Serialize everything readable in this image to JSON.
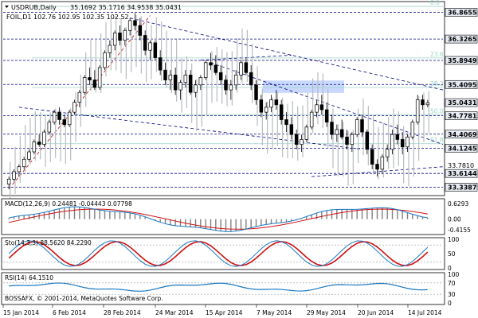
{
  "window": {
    "title": "USDRUB,Daily",
    "ohlc_header": "35.1692 35.1716 34.9538 35.0431",
    "overlay_symbol_line": "FOIL,D1 102.76 102.95 102.35 102.52",
    "copyright": "BOSSAFX, © 2001-2014, MetaQuotes Software Corp."
  },
  "colors": {
    "bull_candle": "#000000",
    "bear_candle": "#000000",
    "overlay_bars": "#b8bcc0",
    "trendline": "#000080",
    "fib": "#9bd4c9",
    "level_line": "#000080",
    "zone": "#c8d8ff",
    "macd_hist": "#808080",
    "macd_signal": "#d01010",
    "macd_main": "#1a78c2",
    "stoch_main": "#1a78c2",
    "stoch_signal": "#d01010",
    "rsi": "#1a78c2"
  },
  "chart_data": [
    {
      "type": "candlestick",
      "name": "USDRUB,Daily",
      "ylim": [
        33.2,
        37.05
      ],
      "y_ticks": [
        "36.8655",
        "36.3265",
        "35.8949",
        "35.4095",
        "35.0431",
        "34.7781",
        "34.4069",
        "34.1245",
        "33.7810",
        "33.6144",
        "33.3387"
      ],
      "highlighted_ticks": [
        "36.8655",
        "36.3265",
        "35.8949",
        "35.4095",
        "35.0431",
        "34.7781",
        "34.4069",
        "34.1245",
        "33.6144",
        "33.3387"
      ],
      "x_tick_labels": [
        "15 Jan 2014",
        "6 Feb 2014",
        "28 Feb 2014",
        "24 Mar 2014",
        "15 Apr 2014",
        "7 May 2014",
        "29 May 2014",
        "20 Jun 2014",
        "14 Jul 2014"
      ],
      "fib_levels": [
        {
          "label": "0.0",
          "value": 36.985
        },
        {
          "label": "23.6",
          "value": 35.945
        },
        {
          "label": "38.2",
          "value": 35.35
        },
        {
          "label": "50.0",
          "value": 34.8
        },
        {
          "label": "61.8",
          "value": 34.215
        }
      ],
      "horizontal_levels": [
        36.8655,
        36.3265,
        35.8949,
        35.4095,
        34.7781,
        34.4069,
        34.1245,
        33.6144,
        33.3387
      ],
      "zone": {
        "low": 35.24,
        "high": 35.49
      },
      "last_price": 35.0431,
      "candles": [
        [
          33.4,
          33.55,
          33.3,
          33.5
        ],
        [
          33.5,
          33.7,
          33.45,
          33.65
        ],
        [
          33.65,
          33.8,
          33.55,
          33.75
        ],
        [
          33.75,
          33.95,
          33.7,
          33.9
        ],
        [
          33.9,
          34.1,
          33.85,
          34.05
        ],
        [
          34.05,
          34.3,
          34.0,
          34.25
        ],
        [
          34.25,
          34.4,
          34.15,
          34.2
        ],
        [
          34.2,
          34.5,
          34.15,
          34.45
        ],
        [
          34.45,
          34.7,
          34.4,
          34.65
        ],
        [
          34.65,
          34.9,
          34.6,
          34.85
        ],
        [
          34.85,
          34.95,
          34.6,
          34.7
        ],
        [
          34.7,
          34.8,
          34.55,
          34.6
        ],
        [
          34.6,
          34.9,
          34.55,
          34.85
        ],
        [
          34.85,
          35.1,
          34.8,
          35.05
        ],
        [
          35.05,
          35.3,
          34.95,
          35.25
        ],
        [
          35.25,
          35.6,
          35.2,
          35.55
        ],
        [
          35.55,
          35.75,
          35.4,
          35.5
        ],
        [
          35.5,
          35.7,
          35.3,
          35.35
        ],
        [
          35.35,
          35.8,
          35.3,
          35.75
        ],
        [
          35.75,
          36.1,
          35.7,
          36.05
        ],
        [
          36.05,
          36.3,
          35.95,
          36.2
        ],
        [
          36.2,
          36.5,
          36.1,
          36.45
        ],
        [
          36.45,
          36.6,
          36.2,
          36.3
        ],
        [
          36.3,
          36.55,
          36.2,
          36.5
        ],
        [
          36.5,
          36.75,
          36.4,
          36.7
        ],
        [
          36.7,
          36.85,
          36.5,
          36.6
        ],
        [
          36.6,
          36.75,
          36.3,
          36.4
        ],
        [
          36.4,
          36.5,
          36.0,
          36.1
        ],
        [
          36.1,
          36.3,
          35.9,
          36.25
        ],
        [
          36.25,
          36.3,
          35.9,
          35.95
        ],
        [
          35.95,
          36.1,
          35.6,
          35.7
        ],
        [
          35.7,
          35.85,
          35.4,
          35.5
        ],
        [
          35.5,
          35.7,
          35.3,
          35.6
        ],
        [
          35.6,
          35.75,
          35.2,
          35.3
        ],
        [
          35.3,
          35.5,
          35.1,
          35.45
        ],
        [
          35.45,
          35.7,
          35.35,
          35.6
        ],
        [
          35.6,
          35.7,
          35.2,
          35.25
        ],
        [
          35.25,
          35.5,
          35.15,
          35.4
        ],
        [
          35.4,
          35.6,
          35.3,
          35.55
        ],
        [
          35.55,
          35.9,
          35.5,
          35.85
        ],
        [
          35.85,
          36.05,
          35.7,
          35.8
        ],
        [
          35.8,
          36.0,
          35.6,
          35.65
        ],
        [
          35.65,
          35.8,
          35.4,
          35.5
        ],
        [
          35.5,
          35.6,
          35.2,
          35.3
        ],
        [
          35.3,
          35.5,
          35.1,
          35.4
        ],
        [
          35.4,
          35.7,
          35.3,
          35.6
        ],
        [
          35.6,
          35.9,
          35.5,
          35.85
        ],
        [
          35.85,
          35.95,
          35.6,
          35.65
        ],
        [
          35.65,
          35.8,
          35.3,
          35.4
        ],
        [
          35.4,
          35.5,
          35.0,
          35.1
        ],
        [
          35.1,
          35.2,
          34.75,
          34.85
        ],
        [
          34.85,
          35.05,
          34.7,
          34.95
        ],
        [
          34.95,
          35.2,
          34.85,
          35.1
        ],
        [
          35.1,
          35.3,
          34.9,
          35.0
        ],
        [
          35.0,
          35.1,
          34.6,
          34.7
        ],
        [
          34.7,
          34.85,
          34.45,
          34.6
        ],
        [
          34.6,
          34.75,
          34.3,
          34.4
        ],
        [
          34.4,
          34.5,
          34.1,
          34.2
        ],
        [
          34.2,
          34.4,
          34.05,
          34.3
        ],
        [
          34.3,
          34.6,
          34.25,
          34.55
        ],
        [
          34.55,
          34.9,
          34.5,
          34.85
        ],
        [
          34.85,
          35.1,
          34.75,
          35.0
        ],
        [
          35.0,
          35.2,
          34.8,
          34.9
        ],
        [
          34.9,
          35.05,
          34.55,
          34.65
        ],
        [
          34.65,
          34.8,
          34.3,
          34.4
        ],
        [
          34.4,
          34.6,
          34.25,
          34.5
        ],
        [
          34.5,
          34.7,
          34.3,
          34.35
        ],
        [
          34.35,
          34.5,
          34.1,
          34.2
        ],
        [
          34.2,
          34.45,
          34.05,
          34.4
        ],
        [
          34.4,
          34.75,
          34.35,
          34.7
        ],
        [
          34.7,
          34.8,
          34.35,
          34.45
        ],
        [
          34.45,
          34.5,
          34.0,
          34.1
        ],
        [
          34.1,
          34.2,
          33.7,
          33.8
        ],
        [
          33.8,
          33.9,
          33.55,
          33.7
        ],
        [
          33.7,
          34.0,
          33.6,
          33.95
        ],
        [
          33.95,
          34.2,
          33.85,
          34.1
        ],
        [
          34.1,
          34.5,
          34.0,
          34.4
        ],
        [
          34.4,
          34.6,
          34.2,
          34.3
        ],
        [
          34.3,
          34.45,
          34.0,
          34.15
        ],
        [
          34.15,
          34.4,
          34.05,
          34.35
        ],
        [
          34.35,
          34.7,
          34.3,
          34.65
        ],
        [
          34.65,
          35.2,
          34.6,
          35.1
        ],
        [
          35.1,
          35.2,
          34.9,
          35.0
        ],
        [
          35.0,
          35.1,
          34.95,
          35.04
        ]
      ]
    },
    {
      "type": "bar",
      "name": "MACD(12,26,9)",
      "header": "MACD(12,26,9) 0.24481 -0.04443 0.07798",
      "y_ticks": [
        "0.6293",
        "0.00",
        "-0.4155"
      ],
      "ylim": [
        -0.55,
        0.75
      ]
    },
    {
      "type": "line",
      "name": "Sto(14,3,3)",
      "header": "Sto(14,3,3) 88.5620 84.2290",
      "y_ticks": [
        "100",
        "50",
        "0"
      ],
      "ylim": [
        0,
        100
      ]
    },
    {
      "type": "line",
      "name": "RSI(14)",
      "header": "RSI(14) 64.1510",
      "y_ticks": [
        "100",
        "70",
        "30",
        "0"
      ],
      "ylim": [
        0,
        100
      ]
    }
  ]
}
